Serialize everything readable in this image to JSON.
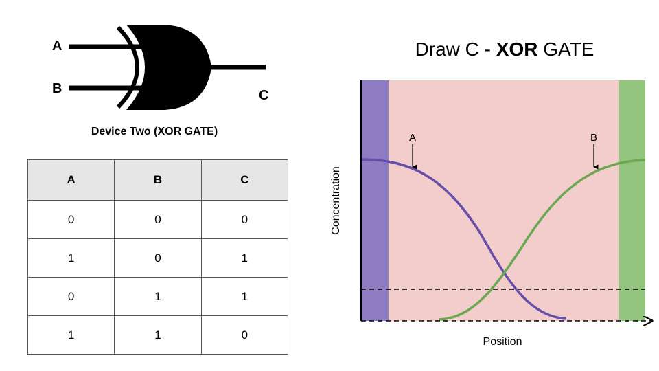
{
  "gate": {
    "input_a": "A",
    "input_b": "B",
    "output_c": "C",
    "caption": "Device Two (XOR GATE)"
  },
  "truth_table": {
    "headers": [
      "A",
      "B",
      "C"
    ],
    "rows": [
      [
        "0",
        "0",
        "0"
      ],
      [
        "1",
        "0",
        "1"
      ],
      [
        "0",
        "1",
        "1"
      ],
      [
        "1",
        "1",
        "0"
      ]
    ]
  },
  "diagram": {
    "title_pre": "Draw C - ",
    "title_bold": "XOR",
    "title_post": " GATE",
    "ylabel": "Concentration",
    "xlabel": "Position",
    "curve_a_label": "A",
    "curve_b_label": "B",
    "colors": {
      "background": "#f3cccc",
      "left_band": "#8e7cc3",
      "right_band": "#93c47d",
      "curve_a": "#674ea7",
      "curve_b": "#6aa84f"
    }
  }
}
